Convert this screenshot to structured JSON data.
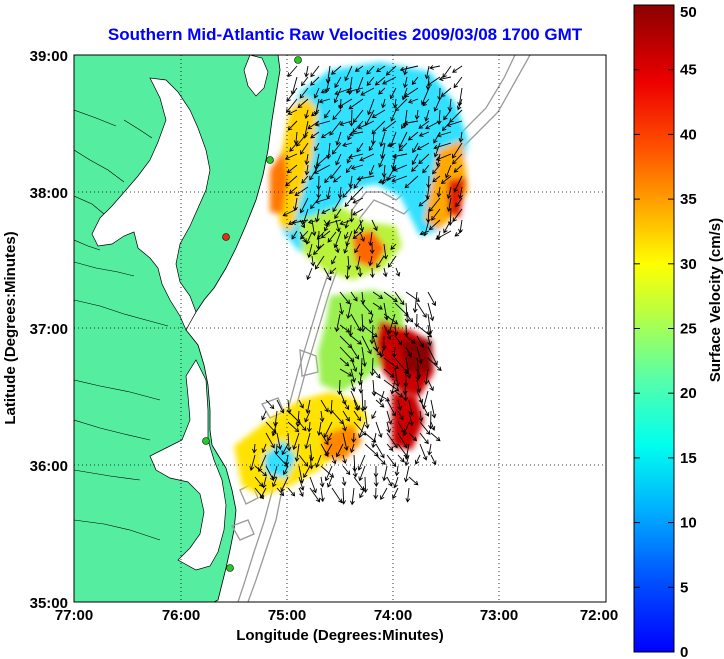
{
  "title": "Southern Mid-Atlantic Raw Velocities 2009/03/08 1700 GMT",
  "map": {
    "x_label": "Longitude (Degrees:Minutes)",
    "y_label": "Latitude (Degrees:Minutes)",
    "x_ticks": [
      "77:00",
      "76:00",
      "75:00",
      "74:00",
      "73:00",
      "72:00"
    ],
    "y_ticks": [
      "39:00",
      "38:00",
      "37:00",
      "36:00",
      "35:00"
    ],
    "lon_range": [
      -77,
      -72
    ],
    "lat_range": [
      35,
      39
    ],
    "grid": "dotted",
    "colors": {
      "land": "#55eea0",
      "ocean": "#ffffff",
      "bathymetry_contour": "#9a9a9a",
      "vectors": "#000000",
      "station_marker": "#22cc22",
      "station_marker_alert": "#dd3311"
    }
  },
  "colorbar": {
    "label": "Surface Velocity (cm/s)",
    "ticks": [
      "50",
      "45",
      "40",
      "35",
      "30",
      "25",
      "20",
      "15",
      "10",
      "5",
      "0"
    ],
    "range": [
      0,
      50
    ],
    "colormap": "jet"
  }
}
